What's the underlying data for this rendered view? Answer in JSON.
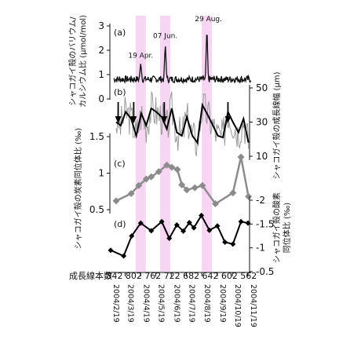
{
  "chart_data": [
    {
      "panel": "(a)",
      "type": "line",
      "ylabel": "シャコガイ殻のバリウム/カルシウム比 (μmol/mol)",
      "yticks": [
        "0",
        "1",
        "2",
        "3"
      ],
      "ylim": [
        0,
        3.3
      ],
      "annotations": [
        "19 Apr.",
        "07 Jun.",
        "29 Aug."
      ],
      "peaks": [
        {
          "date": "2004-04-19",
          "value": 1.5
        },
        {
          "date": "2004-06-07",
          "value": 2.3
        },
        {
          "date": "2004-08-29",
          "value": 3.0
        }
      ],
      "baseline": 0.8
    },
    {
      "panel": "(b)",
      "type": "line",
      "ylabel": "シャコガイ殻の成長線幅 (μm)",
      "yticks": [
        "10",
        "30",
        "50"
      ],
      "ylim": [
        5,
        52
      ],
      "series": [
        {
          "style": "gray-raw"
        },
        {
          "style": "black-smoothed",
          "x": [
            "2004-03-01",
            "2004-03-10",
            "2004-03-20",
            "2004-03-31",
            "2004-04-10",
            "2004-04-20",
            "2004-04-30",
            "2004-05-10",
            "2004-05-20",
            "2004-05-31",
            "2004-06-10",
            "2004-06-20",
            "2004-06-30",
            "2004-07-10",
            "2004-07-20",
            "2004-07-31",
            "2004-08-10",
            "2004-08-20",
            "2004-08-31",
            "2004-09-10",
            "2004-09-20",
            "2004-09-30",
            "2004-10-10",
            "2004-10-20",
            "2004-10-31",
            "2004-11-10",
            "2004-11-20"
          ],
          "values": [
            30,
            28,
            36,
            32,
            22,
            35,
            28,
            38,
            36,
            33,
            26,
            38,
            24,
            22,
            33,
            22,
            18,
            40,
            34,
            28,
            22,
            21,
            36,
            30,
            24,
            32,
            18
          ]
        }
      ],
      "arrows": [
        "2004-03-05",
        "2004-04-05",
        "2004-06-05",
        "2004-10-10"
      ]
    },
    {
      "panel": "(c)",
      "type": "line",
      "ylabel": "シャコガイ殻の炭素同位体比 (‰)",
      "yticks": [
        "0.5",
        "1",
        "1.5"
      ],
      "ylim": [
        0.2,
        1.75
      ],
      "x": [
        "2004-03-01",
        "2004-03-31",
        "2004-04-15",
        "2004-04-30",
        "2004-05-10",
        "2004-05-25",
        "2004-06-10",
        "2004-06-20",
        "2004-07-01",
        "2004-07-10",
        "2004-07-20",
        "2004-08-05",
        "2004-08-20",
        "2004-09-15",
        "2004-10-20",
        "2004-11-05",
        "2004-11-20"
      ],
      "values": [
        0.62,
        0.72,
        0.83,
        0.92,
        0.95,
        1.02,
        1.11,
        1.08,
        1.05,
        0.84,
        0.77,
        0.8,
        0.83,
        0.58,
        0.73,
        1.22,
        0.68
      ]
    },
    {
      "panel": "(d)",
      "type": "line",
      "ylabel": "シャコガイ殻の酸素同位体比 (‰)",
      "yticks": [
        "-2",
        "-1.5",
        "-1",
        "-0.5"
      ],
      "ylim": [
        -2.3,
        -0.3
      ],
      "x": [
        "2004-02-19",
        "2004-03-16",
        "2004-04-01",
        "2004-04-19",
        "2004-05-10",
        "2004-05-31",
        "2004-06-15",
        "2004-06-30",
        "2004-07-13",
        "2004-07-25",
        "2004-08-03",
        "2004-08-18",
        "2004-09-03",
        "2004-09-19",
        "2004-10-04",
        "2004-10-20",
        "2004-11-05",
        "2004-11-19"
      ],
      "values": [
        -0.95,
        -0.83,
        -1.25,
        -1.52,
        -1.36,
        -1.55,
        -1.2,
        -1.48,
        -1.35,
        -1.53,
        -1.42,
        -1.68,
        -1.37,
        -1.46,
        -1.12,
        -1.08,
        -1.55,
        -1.52
      ]
    }
  ],
  "x_axis": {
    "dates": [
      "2004/2/19",
      "2004/3/19",
      "2004/4/19",
      "2004/5/19",
      "2004/6/19",
      "2004/7/19",
      "2004/8/19",
      "2004/9/19",
      "2004/10/19",
      "2004/11/19"
    ],
    "growth_label": "成長線本数",
    "growth_numbers": [
      "842",
      "802",
      "762",
      "722",
      "682",
      "642",
      "602",
      "562"
    ]
  },
  "highlight_color": "#f7d6f3"
}
